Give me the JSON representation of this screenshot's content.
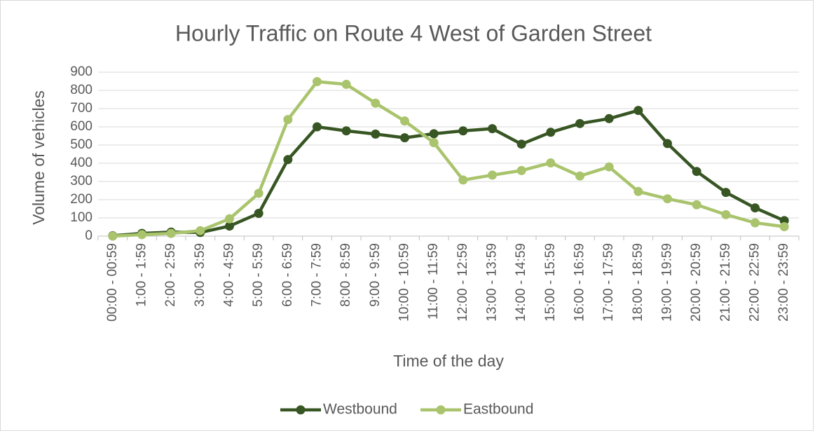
{
  "chart_data": {
    "type": "line",
    "title": "Hourly Traffic on Route 4 West of Garden Street",
    "x_label": "Time of the day",
    "y_label": "Volume of vehicles",
    "categories": [
      "00:00 - 00:59",
      "1:00 - 1:59",
      "2:00 - 2:59",
      "3:00 - 3:59",
      "4:00 - 4:59",
      "5:00 - 5:59",
      "6:00 - 6:59",
      "7:00 - 7:59",
      "8:00 - 8:59",
      "9:00 - 9:59",
      "10:00 - 10:59",
      "11:00 - 11:59",
      "12:00 - 12:59",
      "13:00 - 13:59",
      "14:00 - 14:59",
      "15:00 - 15:59",
      "16:00 - 16:59",
      "17:00 - 17:59",
      "18:00 - 18:59",
      "19:00 - 19:59",
      "20:00 - 20:59",
      "21:00 - 21:59",
      "22:00 - 22:59",
      "23:00 - 23:59"
    ],
    "series": [
      {
        "name": "Westbound",
        "color": "#375623",
        "values": [
          2,
          15,
          22,
          20,
          55,
          125,
          420,
          600,
          578,
          560,
          540,
          562,
          578,
          590,
          505,
          570,
          618,
          645,
          690,
          508,
          355,
          240,
          155,
          85
        ]
      },
      {
        "name": "Eastbound",
        "color": "#a9c46c",
        "values": [
          0,
          8,
          15,
          30,
          95,
          235,
          640,
          848,
          833,
          730,
          632,
          513,
          308,
          335,
          360,
          402,
          330,
          380,
          245,
          205,
          172,
          118,
          73,
          52
        ]
      }
    ],
    "ylim": [
      0,
      900
    ],
    "yticks": [
      0,
      100,
      200,
      300,
      400,
      500,
      600,
      700,
      800,
      900
    ],
    "grid": true,
    "legend": "bottom"
  }
}
